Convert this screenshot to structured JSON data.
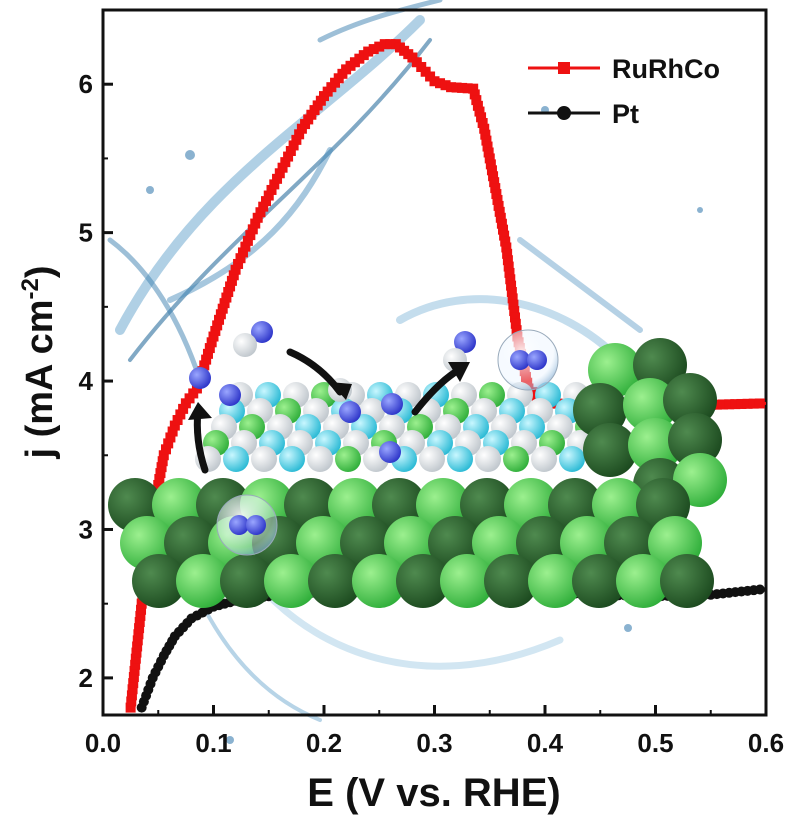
{
  "chart_data": {
    "type": "line",
    "xlabel": "E (V vs. RHE)",
    "ylabel": "j (mA cm",
    "ylabel_sup": "-2",
    "ylabel_close": ")",
    "xlim": [
      0.0,
      0.6
    ],
    "ylim": [
      1.75,
      6.5
    ],
    "xticks": [
      "0.0",
      "0.1",
      "0.2",
      "0.3",
      "0.4",
      "0.5",
      "0.6"
    ],
    "yticks": [
      "2",
      "3",
      "4",
      "5",
      "6"
    ],
    "legend_position": "top-right",
    "series": [
      {
        "name": "RuRhCo",
        "color": "#ee1111",
        "marker": "square",
        "x": [
          0.025,
          0.035,
          0.045,
          0.055,
          0.065,
          0.075,
          0.085,
          0.1,
          0.12,
          0.14,
          0.16,
          0.18,
          0.2,
          0.22,
          0.24,
          0.255,
          0.265,
          0.28,
          0.3,
          0.315,
          0.335,
          0.345,
          0.355,
          0.365,
          0.37,
          0.375,
          0.385,
          0.4,
          0.45,
          0.5,
          0.55,
          0.6
        ],
        "y": [
          1.8,
          2.5,
          3.1,
          3.5,
          3.7,
          3.85,
          3.95,
          4.3,
          4.75,
          5.1,
          5.4,
          5.7,
          5.92,
          6.1,
          6.22,
          6.27,
          6.27,
          6.18,
          6.02,
          5.98,
          5.97,
          5.7,
          5.3,
          4.9,
          4.6,
          4.3,
          3.95,
          3.85,
          3.84,
          3.84,
          3.84,
          3.85
        ]
      },
      {
        "name": "Pt",
        "color": "#111111",
        "marker": "circle",
        "x": [
          0.035,
          0.045,
          0.055,
          0.065,
          0.08,
          0.1,
          0.12,
          0.15,
          0.2,
          0.25,
          0.3,
          0.35,
          0.4,
          0.45,
          0.5,
          0.55,
          0.6
        ],
        "y": [
          1.8,
          2.0,
          2.15,
          2.28,
          2.4,
          2.48,
          2.52,
          2.55,
          2.58,
          2.6,
          2.64,
          2.6,
          2.58,
          2.56,
          2.55,
          2.56,
          2.6
        ]
      }
    ]
  }
}
